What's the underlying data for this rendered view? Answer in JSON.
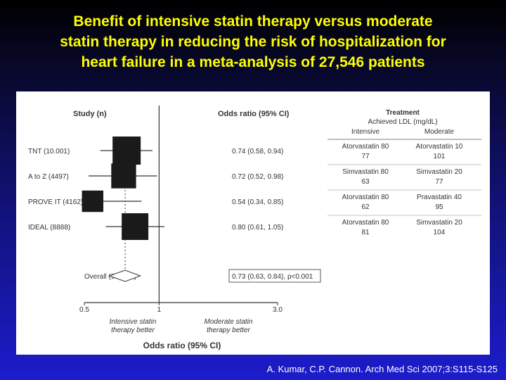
{
  "slide": {
    "title_lines": [
      "Benefit of intensive statin therapy versus moderate",
      "statin therapy in reducing the risk of hospitalization for",
      "heart failure in a meta-analysis of 27,546 patients"
    ],
    "citation": "A. Kumar, C.P. Cannon. Arch Med Sci 2007;3:S115-S125",
    "colors": {
      "background_top": "#000000",
      "background_bottom": "#1c1ccc",
      "title": "#ffff00"
    }
  },
  "table": {
    "treatment_header": "Treatment",
    "ldl_header": "Achieved LDL (mg/dL)",
    "intensive_header": "Intensive",
    "moderate_header": "Moderate",
    "rows": [
      {
        "intensive_drug": "Atorvastatin 80",
        "intensive_ldl": "77",
        "moderate_drug": "Atorvastatin 10",
        "moderate_ldl": "101"
      },
      {
        "intensive_drug": "Simvastatin 80",
        "intensive_ldl": "63",
        "moderate_drug": "Simvastatin 20",
        "moderate_ldl": "77"
      },
      {
        "intensive_drug": "Atorvastatin 80",
        "intensive_ldl": "62",
        "moderate_drug": "Pravastatin 40",
        "moderate_ldl": "95"
      },
      {
        "intensive_drug": "Atorvastatin 80",
        "intensive_ldl": "81",
        "moderate_drug": "Simvastatin 20",
        "moderate_ldl": "104"
      }
    ]
  },
  "chart_data": {
    "type": "forest",
    "study_header": "Study (n)",
    "or_header": "Odds ratio (95% CI)",
    "xlabel": "Odds ratio (95% CI)",
    "x_scale": "log",
    "xlim": [
      0.5,
      3.0
    ],
    "x_ticks": [
      {
        "value": 0.5,
        "label": "0.5"
      },
      {
        "value": 1,
        "label": "1"
      },
      {
        "value": 3.0,
        "label": "3.0"
      }
    ],
    "left_favors": [
      "Intensive statin",
      "therapy better"
    ],
    "right_favors": [
      "Moderate statin",
      "therapy better"
    ],
    "studies": [
      {
        "label": "TNT (10.001)",
        "or": 0.74,
        "lo": 0.58,
        "hi": 0.94,
        "weight": 1.0,
        "ci_text": "0.74 (0.58, 0.94)"
      },
      {
        "label": "A to Z (4497)",
        "or": 0.72,
        "lo": 0.52,
        "hi": 0.98,
        "weight": 0.78,
        "ci_text": "0.72 (0.52, 0.98)"
      },
      {
        "label": "PROVE IT (4162)",
        "or": 0.54,
        "lo": 0.34,
        "hi": 0.85,
        "weight": 0.58,
        "ci_text": "0.54 (0.34, 0.85)"
      },
      {
        "label": "IDEAL (8888)",
        "or": 0.8,
        "lo": 0.61,
        "hi": 1.05,
        "weight": 0.9,
        "ci_text": "0.80 (0.61, 1.05)"
      }
    ],
    "overall": {
      "label": "Overall (95% CI)",
      "or": 0.73,
      "lo": 0.63,
      "hi": 0.84,
      "ci_text": "0.73 (0.63, 0.84), p<0.001"
    }
  }
}
